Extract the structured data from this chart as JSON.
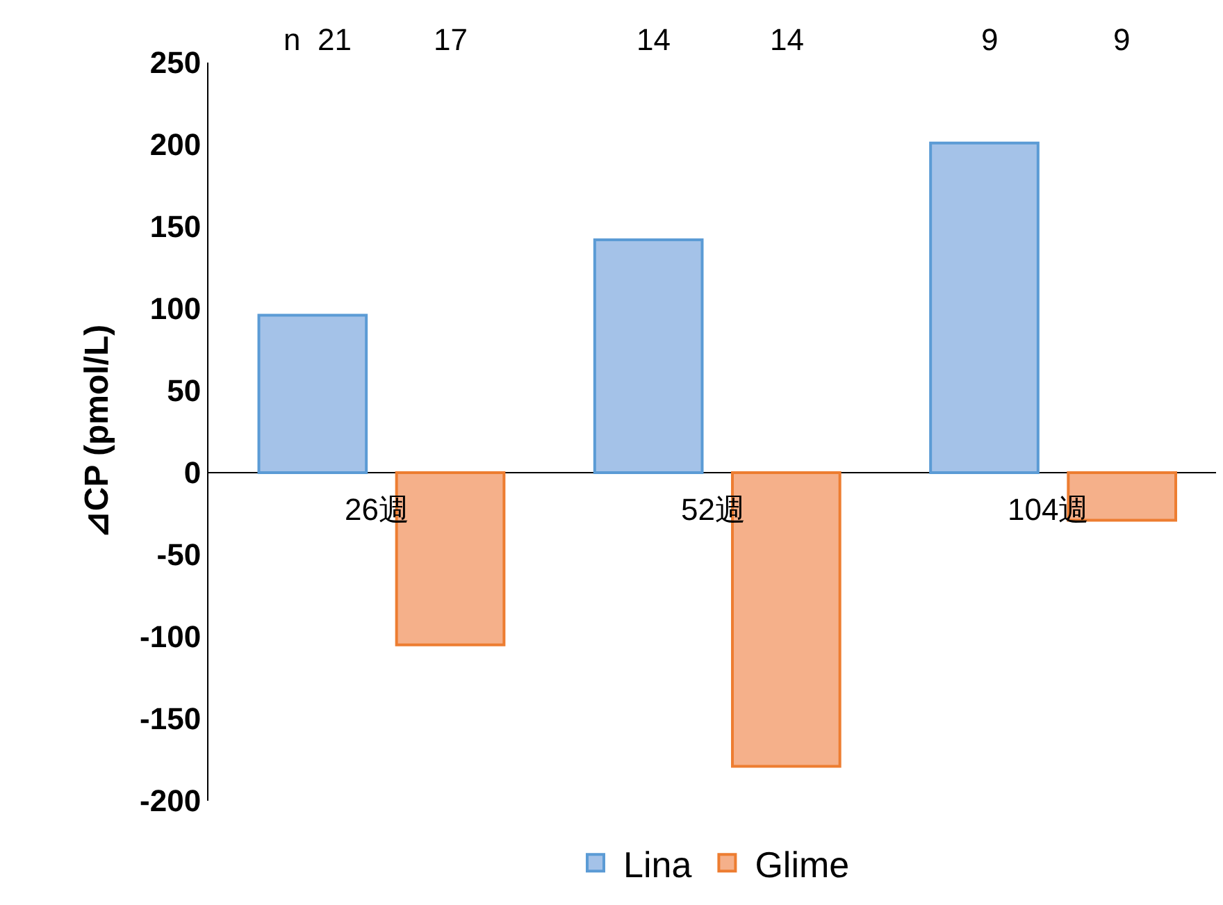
{
  "chart_data": {
    "type": "bar",
    "ylabel": "⊿CP (pmol/L)",
    "categories": [
      "26週",
      "52週",
      "104週"
    ],
    "series": [
      {
        "name": "Lina",
        "color": "#a4c2e8",
        "values": [
          96,
          142,
          201
        ]
      },
      {
        "name": "Glime",
        "color": "#f5b08a",
        "values": [
          -105,
          -179,
          -29
        ]
      }
    ],
    "ylim": [
      -200,
      250
    ],
    "yticks": [
      -200,
      -150,
      -100,
      -50,
      0,
      50,
      100,
      150,
      200,
      250
    ],
    "annotations": [
      "n  21",
      "17",
      "14",
      "14",
      "9",
      "9"
    ],
    "legend": "bottom"
  }
}
